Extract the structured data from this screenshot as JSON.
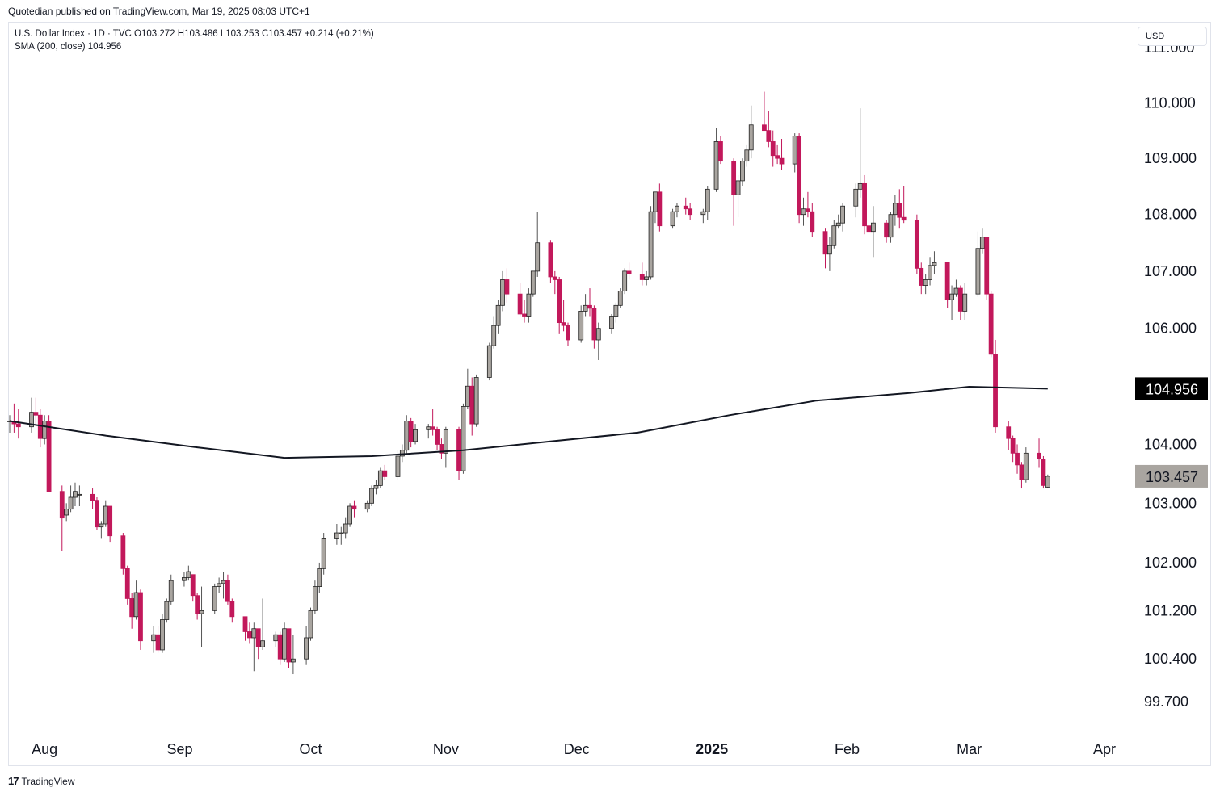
{
  "caption": "Quotedian published on TradingView.com, Mar 19, 2025 08:03 UTC+1",
  "legend": {
    "line1": "U.S. Dollar Index · 1D · TVC  O103.272  H103.486  L103.253  C103.457  +0.214 (+0.21%)",
    "line2": "SMA (200, close)  104.956"
  },
  "currency": "USD",
  "footer": {
    "logo": "17",
    "brand": "TradingView"
  },
  "colors": {
    "up": "#a9a5a0",
    "down": "#c2185b",
    "wick": "#555555",
    "sma": "#131722",
    "last_price_bg": "#a9a5a0",
    "sma_label_bg": "#000000"
  },
  "chart_data": {
    "type": "candlestick",
    "title": "U.S. Dollar Index · 1D · TVC",
    "y_axis": {
      "scale": "log",
      "range": [
        99.4,
        111.1
      ],
      "ticks": [
        "111.000",
        "110.000",
        "109.000",
        "108.000",
        "107.000",
        "106.000",
        "104.000",
        "103.000",
        "102.000",
        "101.200",
        "100.400",
        "99.700"
      ]
    },
    "x_axis": {
      "ticks": [
        {
          "label": "Aug",
          "date": "2024-08-01"
        },
        {
          "label": "Sep",
          "date": "2024-09-01"
        },
        {
          "label": "Oct",
          "date": "2024-10-01"
        },
        {
          "label": "Nov",
          "date": "2024-11-01"
        },
        {
          "label": "Dec",
          "date": "2024-12-01"
        },
        {
          "label": "2025",
          "date": "2025-01-01"
        },
        {
          "label": "Feb",
          "date": "2025-02-01"
        },
        {
          "label": "Mar",
          "date": "2025-03-01"
        },
        {
          "label": "Apr",
          "date": "2025-04-01"
        }
      ],
      "range": [
        "2024-07-24",
        "2025-04-08"
      ]
    },
    "last_price": {
      "label": "103.457",
      "value": 103.457
    },
    "sma": {
      "name": "SMA (200, close)",
      "last_label": "104.956",
      "last_value": 104.956,
      "points": [
        [
          "2024-07-24",
          104.4
        ],
        [
          "2024-08-15",
          104.15
        ],
        [
          "2024-09-05",
          103.95
        ],
        [
          "2024-09-25",
          103.77
        ],
        [
          "2024-10-15",
          103.8
        ],
        [
          "2024-11-05",
          103.9
        ],
        [
          "2024-11-25",
          104.05
        ],
        [
          "2024-12-15",
          104.2
        ],
        [
          "2025-01-05",
          104.5
        ],
        [
          "2025-01-25",
          104.75
        ],
        [
          "2025-02-15",
          104.88
        ],
        [
          "2025-03-01",
          104.99
        ],
        [
          "2025-03-19",
          104.956
        ]
      ]
    },
    "candles": [
      [
        "2024-07-24",
        104.4,
        104.5,
        104.2,
        104.4
      ],
      [
        "2024-07-25",
        104.4,
        104.7,
        104.2,
        104.35
      ],
      [
        "2024-07-26",
        104.35,
        104.6,
        104.1,
        104.3
      ],
      [
        "2024-07-29",
        104.3,
        104.8,
        104.2,
        104.55
      ],
      [
        "2024-07-30",
        104.55,
        104.8,
        104.35,
        104.5
      ],
      [
        "2024-07-31",
        104.5,
        104.6,
        103.95,
        104.1
      ],
      [
        "2024-08-01",
        104.1,
        104.5,
        104.0,
        104.4
      ],
      [
        "2024-08-02",
        104.4,
        104.5,
        103.2,
        103.2
      ],
      [
        "2024-08-05",
        103.2,
        103.3,
        102.2,
        102.75
      ],
      [
        "2024-08-06",
        102.8,
        103.0,
        102.7,
        102.9
      ],
      [
        "2024-08-07",
        102.9,
        103.3,
        102.85,
        103.1
      ],
      [
        "2024-08-08",
        103.1,
        103.35,
        102.95,
        103.2
      ],
      [
        "2024-08-09",
        103.15,
        103.3,
        102.95,
        103.15
      ],
      [
        "2024-08-12",
        103.15,
        103.25,
        102.9,
        103.05
      ],
      [
        "2024-08-13",
        103.05,
        103.1,
        102.55,
        102.6
      ],
      [
        "2024-08-14",
        102.6,
        102.7,
        102.4,
        102.65
      ],
      [
        "2024-08-15",
        102.65,
        103.05,
        102.6,
        102.95
      ],
      [
        "2024-08-16",
        102.95,
        102.95,
        102.35,
        102.45
      ],
      [
        "2024-08-19",
        102.45,
        102.5,
        101.8,
        101.9
      ],
      [
        "2024-08-20",
        101.9,
        101.95,
        101.3,
        101.4
      ],
      [
        "2024-08-21",
        101.4,
        101.5,
        100.9,
        101.1
      ],
      [
        "2024-08-22",
        101.1,
        101.7,
        101.05,
        101.5
      ],
      [
        "2024-08-23",
        101.5,
        101.55,
        100.55,
        100.7
      ],
      [
        "2024-08-26",
        100.7,
        100.95,
        100.5,
        100.8
      ],
      [
        "2024-08-27",
        100.8,
        100.95,
        100.5,
        100.55
      ],
      [
        "2024-08-28",
        100.55,
        101.15,
        100.5,
        101.05
      ],
      [
        "2024-08-29",
        101.05,
        101.4,
        101.0,
        101.35
      ],
      [
        "2024-08-30",
        101.35,
        101.8,
        101.3,
        101.7
      ],
      [
        "2024-09-02",
        101.7,
        101.85,
        101.6,
        101.75
      ],
      [
        "2024-09-03",
        101.75,
        101.95,
        101.7,
        101.85
      ],
      [
        "2024-09-04",
        101.8,
        101.8,
        101.35,
        101.45
      ],
      [
        "2024-09-05",
        101.45,
        101.5,
        101.05,
        101.15
      ],
      [
        "2024-09-06",
        101.15,
        101.6,
        100.6,
        101.2
      ],
      [
        "2024-09-09",
        101.2,
        101.65,
        101.15,
        101.6
      ],
      [
        "2024-09-10",
        101.6,
        101.75,
        101.5,
        101.65
      ],
      [
        "2024-09-11",
        101.65,
        101.85,
        101.4,
        101.7
      ],
      [
        "2024-09-12",
        101.7,
        101.8,
        101.3,
        101.35
      ],
      [
        "2024-09-13",
        101.35,
        101.4,
        101.0,
        101.1
      ],
      [
        "2024-09-16",
        101.1,
        101.1,
        100.7,
        100.85
      ],
      [
        "2024-09-17",
        100.85,
        101.0,
        100.65,
        100.75
      ],
      [
        "2024-09-18",
        100.75,
        101.0,
        100.2,
        100.9
      ],
      [
        "2024-09-19",
        100.9,
        100.9,
        100.4,
        100.6
      ],
      [
        "2024-09-20",
        100.6,
        101.4,
        100.55,
        100.7
      ],
      [
        "2024-09-23",
        100.7,
        100.85,
        100.6,
        100.8
      ],
      [
        "2024-09-24",
        100.8,
        100.85,
        100.3,
        100.4
      ],
      [
        "2024-09-25",
        100.4,
        101.0,
        100.35,
        100.9
      ],
      [
        "2024-09-26",
        100.9,
        100.9,
        100.25,
        100.35
      ],
      [
        "2024-09-27",
        100.35,
        100.8,
        100.15,
        100.4
      ],
      [
        "2024-09-30",
        100.4,
        100.95,
        100.3,
        100.75
      ],
      [
        "2024-10-01",
        100.75,
        101.25,
        100.7,
        101.2
      ],
      [
        "2024-10-02",
        101.2,
        101.7,
        101.15,
        101.6
      ],
      [
        "2024-10-03",
        101.6,
        102.0,
        101.5,
        101.9
      ],
      [
        "2024-10-04",
        101.9,
        102.5,
        101.8,
        102.4
      ],
      [
        "2024-10-07",
        102.4,
        102.65,
        102.3,
        102.5
      ],
      [
        "2024-10-08",
        102.5,
        102.6,
        102.3,
        102.5
      ],
      [
        "2024-10-09",
        102.5,
        102.75,
        102.4,
        102.65
      ],
      [
        "2024-10-10",
        102.65,
        103.0,
        102.6,
        102.95
      ],
      [
        "2024-10-11",
        102.95,
        103.05,
        102.75,
        102.9
      ],
      [
        "2024-10-14",
        102.9,
        103.05,
        102.85,
        103.0
      ],
      [
        "2024-10-15",
        103.0,
        103.3,
        102.95,
        103.25
      ],
      [
        "2024-10-16",
        103.25,
        103.4,
        103.15,
        103.3
      ],
      [
        "2024-10-17",
        103.3,
        103.6,
        103.25,
        103.55
      ],
      [
        "2024-10-18",
        103.55,
        103.65,
        103.4,
        103.45
      ],
      [
        "2024-10-21",
        103.45,
        103.9,
        103.4,
        103.8
      ],
      [
        "2024-10-22",
        103.8,
        104.0,
        103.7,
        103.9
      ],
      [
        "2024-10-23",
        103.9,
        104.5,
        103.85,
        104.4
      ],
      [
        "2024-10-24",
        104.4,
        104.45,
        103.95,
        104.05
      ],
      [
        "2024-10-25",
        104.05,
        104.35,
        104.0,
        104.25
      ],
      [
        "2024-10-28",
        104.25,
        104.35,
        104.1,
        104.3
      ],
      [
        "2024-10-29",
        104.3,
        104.6,
        104.15,
        104.25
      ],
      [
        "2024-10-30",
        104.25,
        104.3,
        103.9,
        104.0
      ],
      [
        "2024-10-31",
        104.0,
        104.1,
        103.75,
        103.85
      ],
      [
        "2024-11-01",
        103.85,
        104.3,
        103.6,
        104.25
      ],
      [
        "2024-11-04",
        104.25,
        104.3,
        103.4,
        103.55
      ],
      [
        "2024-11-05",
        103.55,
        104.7,
        103.5,
        104.65
      ],
      [
        "2024-11-06",
        104.65,
        105.3,
        104.6,
        105.0
      ],
      [
        "2024-11-07",
        105.0,
        105.15,
        104.15,
        104.35
      ],
      [
        "2024-11-08",
        104.35,
        105.2,
        104.3,
        105.15
      ],
      [
        "2024-11-11",
        105.15,
        105.75,
        105.1,
        105.7
      ],
      [
        "2024-11-12",
        105.7,
        106.2,
        105.65,
        106.05
      ],
      [
        "2024-11-13",
        106.05,
        106.5,
        105.9,
        106.4
      ],
      [
        "2024-11-14",
        106.4,
        107.0,
        106.3,
        106.85
      ],
      [
        "2024-11-15",
        106.85,
        107.05,
        106.45,
        106.6
      ],
      [
        "2024-11-18",
        106.6,
        106.8,
        106.2,
        106.25
      ],
      [
        "2024-11-19",
        106.25,
        106.5,
        106.1,
        106.2
      ],
      [
        "2024-11-20",
        106.2,
        106.7,
        106.1,
        106.6
      ],
      [
        "2024-11-21",
        106.6,
        107.0,
        106.55,
        107.0
      ],
      [
        "2024-11-22",
        107.0,
        108.05,
        106.9,
        107.5
      ],
      [
        "2024-11-25",
        107.5,
        107.55,
        106.8,
        106.9
      ],
      [
        "2024-11-26",
        106.9,
        107.0,
        106.6,
        106.85
      ],
      [
        "2024-11-27",
        106.85,
        106.9,
        105.9,
        106.1
      ],
      [
        "2024-11-28",
        106.1,
        106.5,
        105.95,
        106.05
      ],
      [
        "2024-11-29",
        106.05,
        106.1,
        105.7,
        105.8
      ],
      [
        "2024-12-02",
        105.8,
        106.4,
        105.75,
        106.3
      ],
      [
        "2024-12-03",
        106.3,
        106.6,
        106.2,
        106.4
      ],
      [
        "2024-12-04",
        106.4,
        106.7,
        106.2,
        106.35
      ],
      [
        "2024-12-05",
        106.35,
        106.4,
        105.65,
        105.8
      ],
      [
        "2024-12-06",
        105.8,
        106.1,
        105.45,
        106.0
      ],
      [
        "2024-12-09",
        106.0,
        106.25,
        105.9,
        106.2
      ],
      [
        "2024-12-10",
        106.2,
        106.45,
        106.1,
        106.4
      ],
      [
        "2024-12-11",
        106.4,
        106.7,
        106.35,
        106.65
      ],
      [
        "2024-12-12",
        106.65,
        107.05,
        106.6,
        107.0
      ],
      [
        "2024-12-13",
        107.0,
        107.15,
        106.85,
        106.95
      ],
      [
        "2024-12-16",
        106.95,
        107.15,
        106.75,
        106.85
      ],
      [
        "2024-12-17",
        106.85,
        107.0,
        106.75,
        106.9
      ],
      [
        "2024-12-18",
        106.9,
        108.15,
        106.85,
        108.05
      ],
      [
        "2024-12-19",
        108.05,
        108.4,
        107.85,
        108.4
      ],
      [
        "2024-12-20",
        108.4,
        108.55,
        107.7,
        107.8
      ],
      [
        "2024-12-23",
        107.8,
        108.1,
        107.75,
        108.05
      ],
      [
        "2024-12-24",
        108.05,
        108.2,
        107.95,
        108.15
      ],
      [
        "2024-12-26",
        108.15,
        108.3,
        108.0,
        108.1
      ],
      [
        "2024-12-27",
        108.1,
        108.2,
        107.9,
        108.0
      ],
      [
        "2024-12-30",
        108.0,
        108.1,
        107.85,
        108.05
      ],
      [
        "2024-12-31",
        108.05,
        108.5,
        107.9,
        108.45
      ],
      [
        "2025-01-02",
        108.45,
        109.55,
        108.4,
        109.3
      ],
      [
        "2025-01-03",
        109.3,
        109.4,
        108.9,
        108.95
      ],
      [
        "2025-01-06",
        108.95,
        109.0,
        107.8,
        108.35
      ],
      [
        "2025-01-07",
        108.35,
        108.7,
        107.95,
        108.6
      ],
      [
        "2025-01-08",
        108.6,
        109.0,
        108.5,
        108.95
      ],
      [
        "2025-01-09",
        108.95,
        109.25,
        108.85,
        109.15
      ],
      [
        "2025-01-10",
        109.15,
        109.95,
        109.0,
        109.6
      ],
      [
        "2025-01-13",
        109.6,
        110.2,
        109.5,
        109.5
      ],
      [
        "2025-01-14",
        109.5,
        109.85,
        109.2,
        109.3
      ],
      [
        "2025-01-15",
        109.3,
        109.5,
        108.85,
        109.05
      ],
      [
        "2025-01-16",
        109.05,
        109.25,
        108.9,
        109.0
      ],
      [
        "2025-01-17",
        109.0,
        109.35,
        108.8,
        108.9
      ],
      [
        "2025-01-20",
        108.9,
        109.45,
        108.75,
        109.4
      ],
      [
        "2025-01-21",
        109.4,
        109.45,
        107.85,
        108.0
      ],
      [
        "2025-01-22",
        108.0,
        108.3,
        107.8,
        108.1
      ],
      [
        "2025-01-23",
        108.1,
        108.4,
        107.95,
        108.05
      ],
      [
        "2025-01-24",
        108.05,
        108.2,
        107.6,
        107.7
      ],
      [
        "2025-01-27",
        107.7,
        107.75,
        107.05,
        107.3
      ],
      [
        "2025-01-28",
        107.3,
        107.6,
        107.0,
        107.45
      ],
      [
        "2025-01-29",
        107.45,
        107.9,
        107.4,
        107.8
      ],
      [
        "2025-01-30",
        107.8,
        108.0,
        107.75,
        107.85
      ],
      [
        "2025-01-31",
        107.85,
        108.2,
        107.7,
        108.15
      ],
      [
        "2025-02-03",
        108.15,
        108.55,
        107.95,
        108.45
      ],
      [
        "2025-02-04",
        108.45,
        109.9,
        108.3,
        108.55
      ],
      [
        "2025-02-05",
        108.55,
        108.7,
        107.65,
        107.8
      ],
      [
        "2025-02-06",
        107.8,
        108.1,
        107.5,
        107.7
      ],
      [
        "2025-02-07",
        107.7,
        108.15,
        107.25,
        107.85
      ],
      [
        "2025-02-10",
        107.85,
        107.9,
        107.5,
        107.6
      ],
      [
        "2025-02-11",
        107.6,
        108.05,
        107.5,
        108.0
      ],
      [
        "2025-02-12",
        108.0,
        108.35,
        107.8,
        108.2
      ],
      [
        "2025-02-13",
        108.2,
        108.45,
        107.75,
        107.95
      ],
      [
        "2025-02-14",
        107.95,
        108.5,
        107.85,
        107.9
      ],
      [
        "2025-02-17",
        107.9,
        108.0,
        106.95,
        107.05
      ],
      [
        "2025-02-18",
        107.05,
        107.15,
        106.6,
        106.75
      ],
      [
        "2025-02-19",
        106.75,
        106.95,
        106.6,
        106.85
      ],
      [
        "2025-02-20",
        106.85,
        107.25,
        106.75,
        107.1
      ],
      [
        "2025-02-21",
        107.1,
        107.35,
        106.95,
        107.15
      ],
      [
        "2025-02-24",
        107.15,
        107.15,
        106.35,
        106.5
      ],
      [
        "2025-02-25",
        106.5,
        106.75,
        106.15,
        106.6
      ],
      [
        "2025-02-26",
        106.6,
        106.85,
        106.55,
        106.7
      ],
      [
        "2025-02-27",
        106.7,
        106.75,
        106.15,
        106.3
      ],
      [
        "2025-02-28",
        106.3,
        106.8,
        106.15,
        106.6
      ],
      [
        "2025-03-03",
        106.6,
        107.7,
        106.55,
        107.4
      ],
      [
        "2025-03-04",
        107.4,
        107.75,
        107.3,
        107.6
      ],
      [
        "2025-03-05",
        107.6,
        107.6,
        106.5,
        106.6
      ],
      [
        "2025-03-06",
        106.6,
        106.65,
        105.5,
        105.55
      ],
      [
        "2025-03-07",
        105.55,
        105.8,
        104.2,
        104.3
      ],
      [
        "2025-03-10",
        104.3,
        104.4,
        103.9,
        104.1
      ],
      [
        "2025-03-11",
        104.1,
        104.15,
        103.7,
        103.85
      ],
      [
        "2025-03-12",
        103.85,
        104.0,
        103.5,
        103.65
      ],
      [
        "2025-03-13",
        103.65,
        103.7,
        103.25,
        103.4
      ],
      [
        "2025-03-14",
        103.4,
        103.95,
        103.35,
        103.85
      ],
      [
        "2025-03-17",
        103.85,
        104.1,
        103.6,
        103.75
      ],
      [
        "2025-03-18",
        103.75,
        103.8,
        103.25,
        103.3
      ],
      [
        "2025-03-19",
        103.272,
        103.486,
        103.253,
        103.457
      ]
    ]
  }
}
